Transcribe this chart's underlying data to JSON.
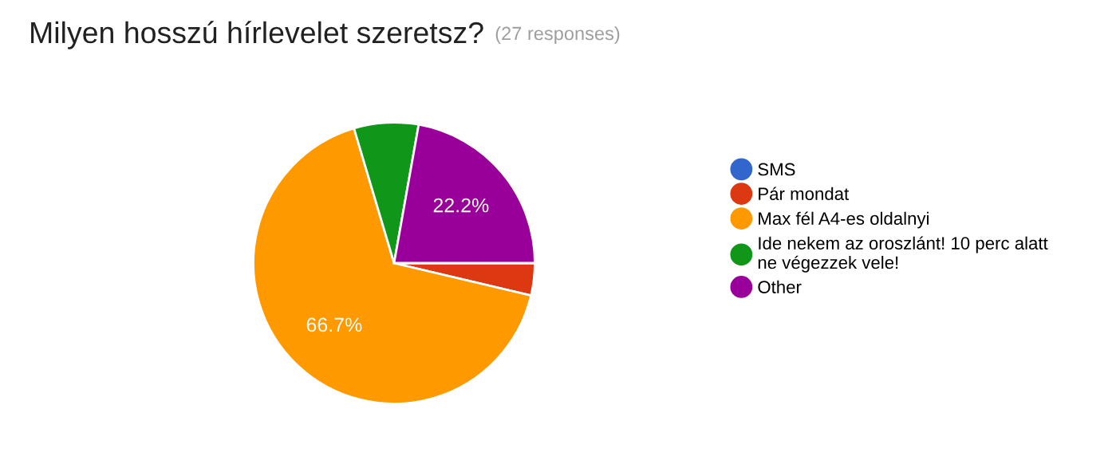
{
  "chart_data": {
    "type": "pie",
    "title": "Milyen hosszú hírlevelet szeretsz?",
    "subtitle": "(27 responses)",
    "categories": [
      "SMS",
      "Pár mondat",
      "Max fél A4-es oldalnyi",
      "Ide nekem az oroszlánt! 10 perc alatt\nne végezzek vele!",
      "Other"
    ],
    "values": [
      0,
      3.7,
      66.7,
      7.4,
      22.2
    ],
    "colors": [
      "#3366cc",
      "#dc3912",
      "#ff9900",
      "#109618",
      "#990099"
    ],
    "value_labels": [
      null,
      null,
      "66.7%",
      null,
      "22.2%"
    ],
    "legend": "right"
  }
}
